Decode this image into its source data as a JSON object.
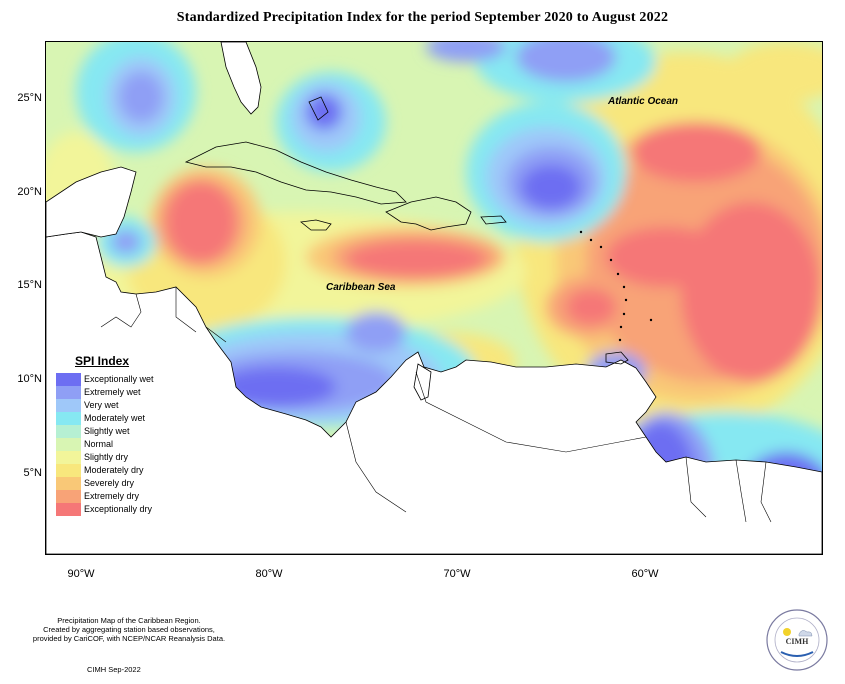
{
  "title": "Standardized Precipitation Index for the period September 2020 to August 2022",
  "map": {
    "ocean_labels": {
      "atlantic": "Atlantic Ocean",
      "caribbean": "Caribbean Sea"
    },
    "lat_ticks": [
      "25°N",
      "20°N",
      "15°N",
      "10°N",
      "5°N"
    ],
    "lon_ticks": [
      "90°W",
      "80°W",
      "70°W",
      "60°W"
    ]
  },
  "legend": {
    "title": "SPI Index",
    "items": [
      {
        "label": "Exceptionally wet",
        "color": "#6d6ef2"
      },
      {
        "label": "Extremely wet",
        "color": "#8f9ff5"
      },
      {
        "label": "Very wet",
        "color": "#9fc8f9"
      },
      {
        "label": "Moderately wet",
        "color": "#86e8f2"
      },
      {
        "label": "Slightly wet",
        "color": "#b6f0d3"
      },
      {
        "label": "Normal",
        "color": "#d8f5b3"
      },
      {
        "label": "Slightly dry",
        "color": "#f2f59a"
      },
      {
        "label": "Moderately dry",
        "color": "#f8e77d"
      },
      {
        "label": "Severely dry",
        "color": "#f9c877"
      },
      {
        "label": "Extremely dry",
        "color": "#f8a377"
      },
      {
        "label": "Exceptionally dry",
        "color": "#f57777"
      }
    ]
  },
  "footer": {
    "line1": "Precipitation Map of the Caribbean Region.",
    "line2": "Created by aggregating station based observations,",
    "line3": "provided by CariCOF, with NCEP/NCAR Reanalysis Data.",
    "date": "CIMH Sep-2022"
  },
  "logo": {
    "text": "CIMH"
  }
}
